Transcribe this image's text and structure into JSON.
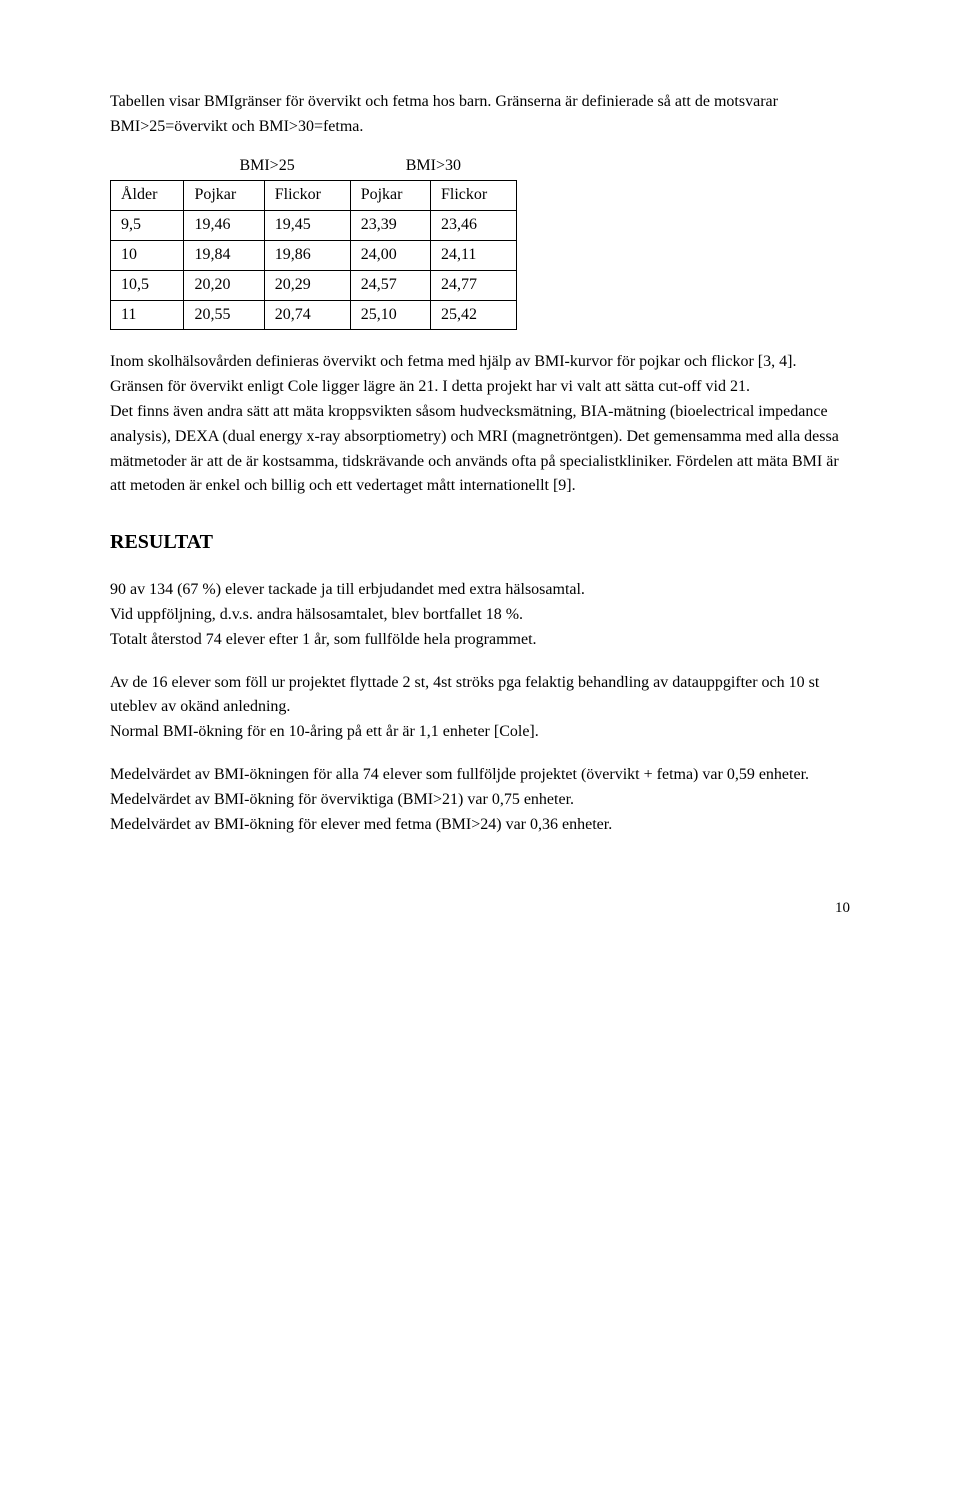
{
  "intro": "Tabellen visar BMIgränser för övervikt och fetma hos barn. Gränserna är definierade så att de motsvarar BMI>25=övervikt och BMI>30=fetma.",
  "table": {
    "headers": {
      "col1": "Ålder",
      "group1": "BMI>25",
      "group2": "BMI>30",
      "sub1": "Pojkar",
      "sub2": "Flickor",
      "sub3": "Pojkar",
      "sub4": "Flickor"
    },
    "rows": [
      [
        "9,5",
        "19,46",
        "19,45",
        "23,39",
        "23,46"
      ],
      [
        "10",
        "19,84",
        "19,86",
        "24,00",
        "24,11"
      ],
      [
        "10,5",
        "20,20",
        "20,29",
        "24,57",
        "24,77"
      ],
      [
        "11",
        "20,55",
        "20,74",
        "25,10",
        "25,42"
      ]
    ]
  },
  "body1": "Inom skolhälsovården definieras övervikt och fetma med hjälp av BMI-kurvor för pojkar och flickor [3, 4]. Gränsen för övervikt enligt Cole ligger lägre än 21. I detta projekt har vi valt att sätta cut-off vid 21.",
  "body2": "Det finns även andra sätt att mäta kroppsvikten såsom hudvecksmätning, BIA-mätning (bioelectrical impedance analysis), DEXA (dual energy x-ray absorptiometry) och MRI (magnetröntgen). Det gemensamma med alla dessa mätmetoder är att de är kostsamma, tidskrävande och används ofta på specialistkliniker. Fördelen att mäta BMI är att metoden är enkel och billig och ett vedertaget mått internationellt [9].",
  "resultat_heading": "RESULTAT",
  "r1": "90 av 134 (67 %) elever tackade ja till erbjudandet med extra hälsosamtal.",
  "r2": "Vid uppföljning, d.v.s. andra hälsosamtalet, blev bortfallet 18 %.",
  "r3": "Totalt återstod 74 elever efter 1 år, som fullfölde hela programmet.",
  "r4": "Av de 16 elever som föll ur projektet flyttade 2 st, 4st ströks pga felaktig behandling av datauppgifter och 10 st uteblev av okänd anledning.",
  "r5": "Normal BMI-ökning för en 10-åring på ett år är 1,1 enheter [Cole].",
  "r6": "Medelvärdet av BMI-ökningen för alla 74 elever som fullföljde projektet (övervikt + fetma) var 0,59 enheter.",
  "r7": "Medelvärdet av BMI-ökning för överviktiga (BMI>21) var 0,75 enheter.",
  "r8": "Medelvärdet av BMI-ökning för elever med fetma (BMI>24) var 0,36 enheter.",
  "page_number": "10"
}
